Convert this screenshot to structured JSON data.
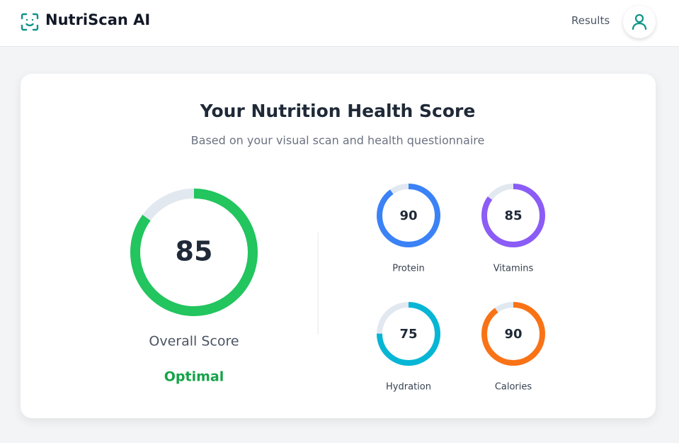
{
  "header": {
    "brand": "NutriScan AI",
    "nav": "Results"
  },
  "card": {
    "title": "Your Nutrition Health Score",
    "subtitle": "Based on your visual scan and health questionnaire",
    "overall": {
      "score": 85,
      "label": "Overall Score",
      "status": "Optimal",
      "color": "#22c55e"
    },
    "metrics": [
      {
        "name": "Protein",
        "score": 90,
        "color": "#3b82f6"
      },
      {
        "name": "Vitamins",
        "score": 85,
        "color": "#8b5cf6"
      },
      {
        "name": "Hydration",
        "score": 75,
        "color": "#06b6d4"
      },
      {
        "name": "Calories",
        "score": 90,
        "color": "#f97316"
      }
    ]
  }
}
